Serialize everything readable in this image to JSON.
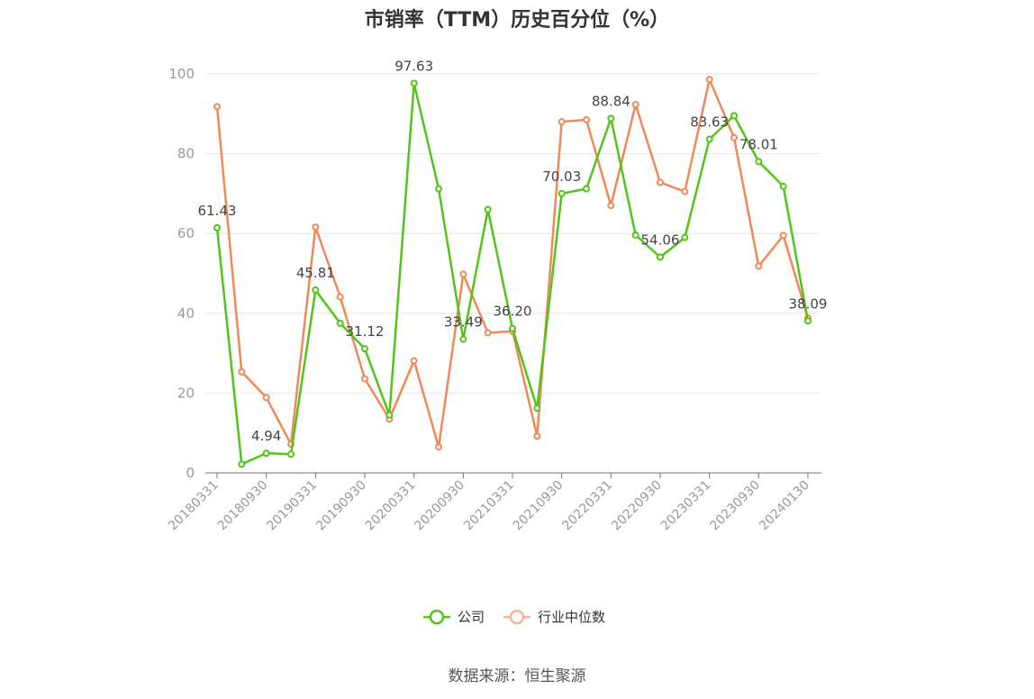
{
  "title": "市销率（TTM）历史百分位（%）",
  "source": "数据来源：恒生聚源",
  "chart_data": {
    "type": "line",
    "title": "市销率（TTM）历史百分位（%）",
    "ylim": [
      0,
      100
    ],
    "yticks": [
      0,
      20,
      40,
      60,
      80,
      100
    ],
    "grid": true,
    "legend_position": "bottom-center",
    "x": [
      "20180331",
      "20180630",
      "20180930",
      "20181231",
      "20190331",
      "20190630",
      "20190930",
      "20191231",
      "20200331",
      "20200630",
      "20200930",
      "20201231",
      "20210331",
      "20210630",
      "20210930",
      "20211231",
      "20220331",
      "20220630",
      "20220930",
      "20221231",
      "20230331",
      "20230630",
      "20230930",
      "20231231",
      "20240130"
    ],
    "xtick_labels": [
      "20180331",
      "20180930",
      "20190331",
      "20190930",
      "20200331",
      "20200930",
      "20210331",
      "20210930",
      "20220331",
      "20220930",
      "20230331",
      "20230930",
      "20240130"
    ],
    "series": [
      {
        "name": "公司",
        "color": "#52c41a",
        "values": [
          61.43,
          2.2,
          4.94,
          4.7,
          45.81,
          37.5,
          31.12,
          14.5,
          97.63,
          71.2,
          33.49,
          66.0,
          36.2,
          16.2,
          70.03,
          71.2,
          88.84,
          59.6,
          54.06,
          59.0,
          83.63,
          89.5,
          78.01,
          71.8,
          38.09
        ],
        "labels": {
          "0": "61.43",
          "2": "4.94",
          "4": "45.81",
          "6": "31.12",
          "8": "97.63",
          "10": "33.49",
          "12": "36.20",
          "14": "70.03",
          "16": "88.84",
          "18": "54.06",
          "20": "83.63",
          "22": "78.01",
          "24": "38.09"
        }
      },
      {
        "name": "行业中位数",
        "color": "#f0895a",
        "values": [
          91.8,
          25.3,
          18.9,
          7.2,
          61.6,
          44.1,
          23.6,
          13.5,
          28.1,
          6.5,
          49.8,
          35.1,
          35.5,
          9.2,
          88.0,
          88.5,
          67.0,
          92.3,
          72.8,
          70.5,
          98.6,
          84.0,
          51.8,
          59.5,
          38.8
        ]
      }
    ]
  }
}
